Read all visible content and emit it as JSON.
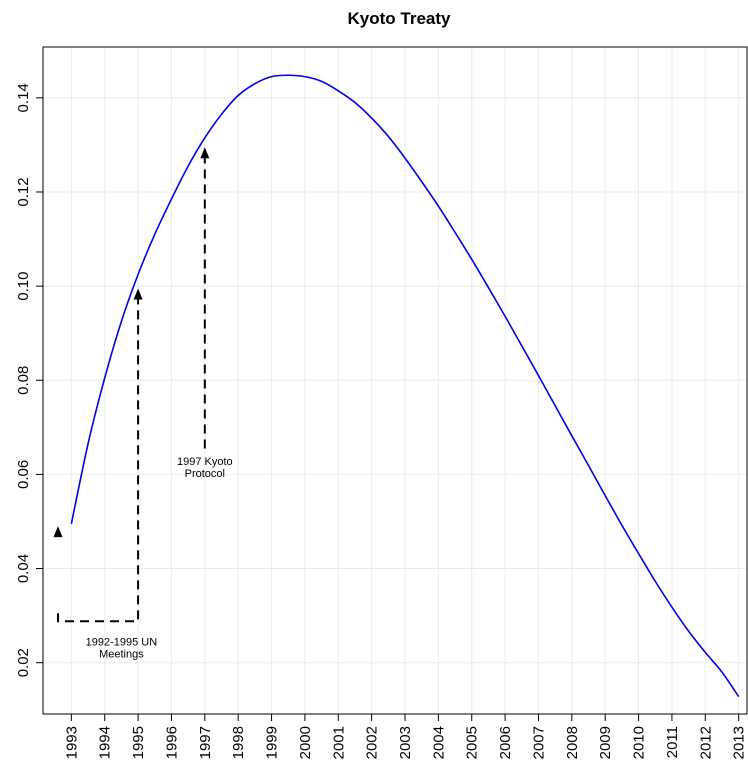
{
  "chart_data": {
    "type": "line",
    "title": "Kyoto Treaty",
    "xlabel": "",
    "ylabel": "",
    "xlim": [
      1992.15,
      2013.25
    ],
    "ylim": [
      0.0091,
      0.1508
    ],
    "grid": true,
    "series": [
      {
        "color": "#0000ee",
        "x": [
          1993,
          1993.5,
          1994,
          1994.5,
          1995,
          1995.5,
          1996,
          1996.5,
          1997,
          1997.5,
          1998,
          1998.5,
          1999,
          1999.5,
          2000,
          2000.5,
          2001,
          2001.5,
          2002,
          2002.5,
          2003,
          2003.5,
          2004,
          2004.5,
          2005,
          2005.5,
          2006,
          2006.5,
          2007,
          2007.5,
          2008,
          2008.5,
          2009,
          2009.5,
          2010,
          2010.5,
          2011,
          2011.5,
          2012,
          2012.5,
          2013
        ],
        "y": [
          0.0495,
          0.0665,
          0.0805,
          0.0925,
          0.1025,
          0.111,
          0.1185,
          0.1255,
          0.1315,
          0.1365,
          0.1405,
          0.143,
          0.1445,
          0.1448,
          0.1445,
          0.1435,
          0.1415,
          0.139,
          0.1357,
          0.1318,
          0.1272,
          0.1222,
          0.117,
          0.1114,
          0.1057,
          0.0997,
          0.0936,
          0.0873,
          0.081,
          0.0746,
          0.0682,
          0.0619,
          0.0555,
          0.0492,
          0.0432,
          0.0373,
          0.0318,
          0.0267,
          0.0222,
          0.018,
          0.0128
        ]
      }
    ],
    "x_ticks": [
      "1993",
      "1994",
      "1995",
      "1996",
      "1997",
      "1998",
      "1999",
      "2000",
      "2001",
      "2002",
      "2003",
      "2004",
      "2005",
      "2006",
      "2007",
      "2008",
      "2009",
      "2010",
      "2011",
      "2012",
      "2013"
    ],
    "y_ticks": [
      "0.02",
      "0.04",
      "0.06",
      "0.08",
      "0.10",
      "0.12",
      "0.14"
    ],
    "annotations": [
      {
        "label_lines": [
          "1992-1995 UN",
          "Meetings"
        ],
        "text_x": 1994.5,
        "text_y": 0.0237,
        "path": [
          [
            1992.6,
            0.0305
          ],
          [
            1992.6,
            0.0288
          ],
          [
            1995,
            0.0288
          ],
          [
            1995,
            0.0975
          ]
        ],
        "arrows": [
          [
            1992.6,
            0.049
          ],
          [
            1995,
            0.0995
          ]
        ]
      },
      {
        "label_lines": [
          "1997 Kyoto",
          "Protocol"
        ],
        "text_x": 1997,
        "text_y": 0.062,
        "path": [
          [
            1997,
            0.0655
          ],
          [
            1997,
            0.1275
          ]
        ],
        "arrows": [
          [
            1997,
            0.1295
          ]
        ]
      }
    ]
  }
}
